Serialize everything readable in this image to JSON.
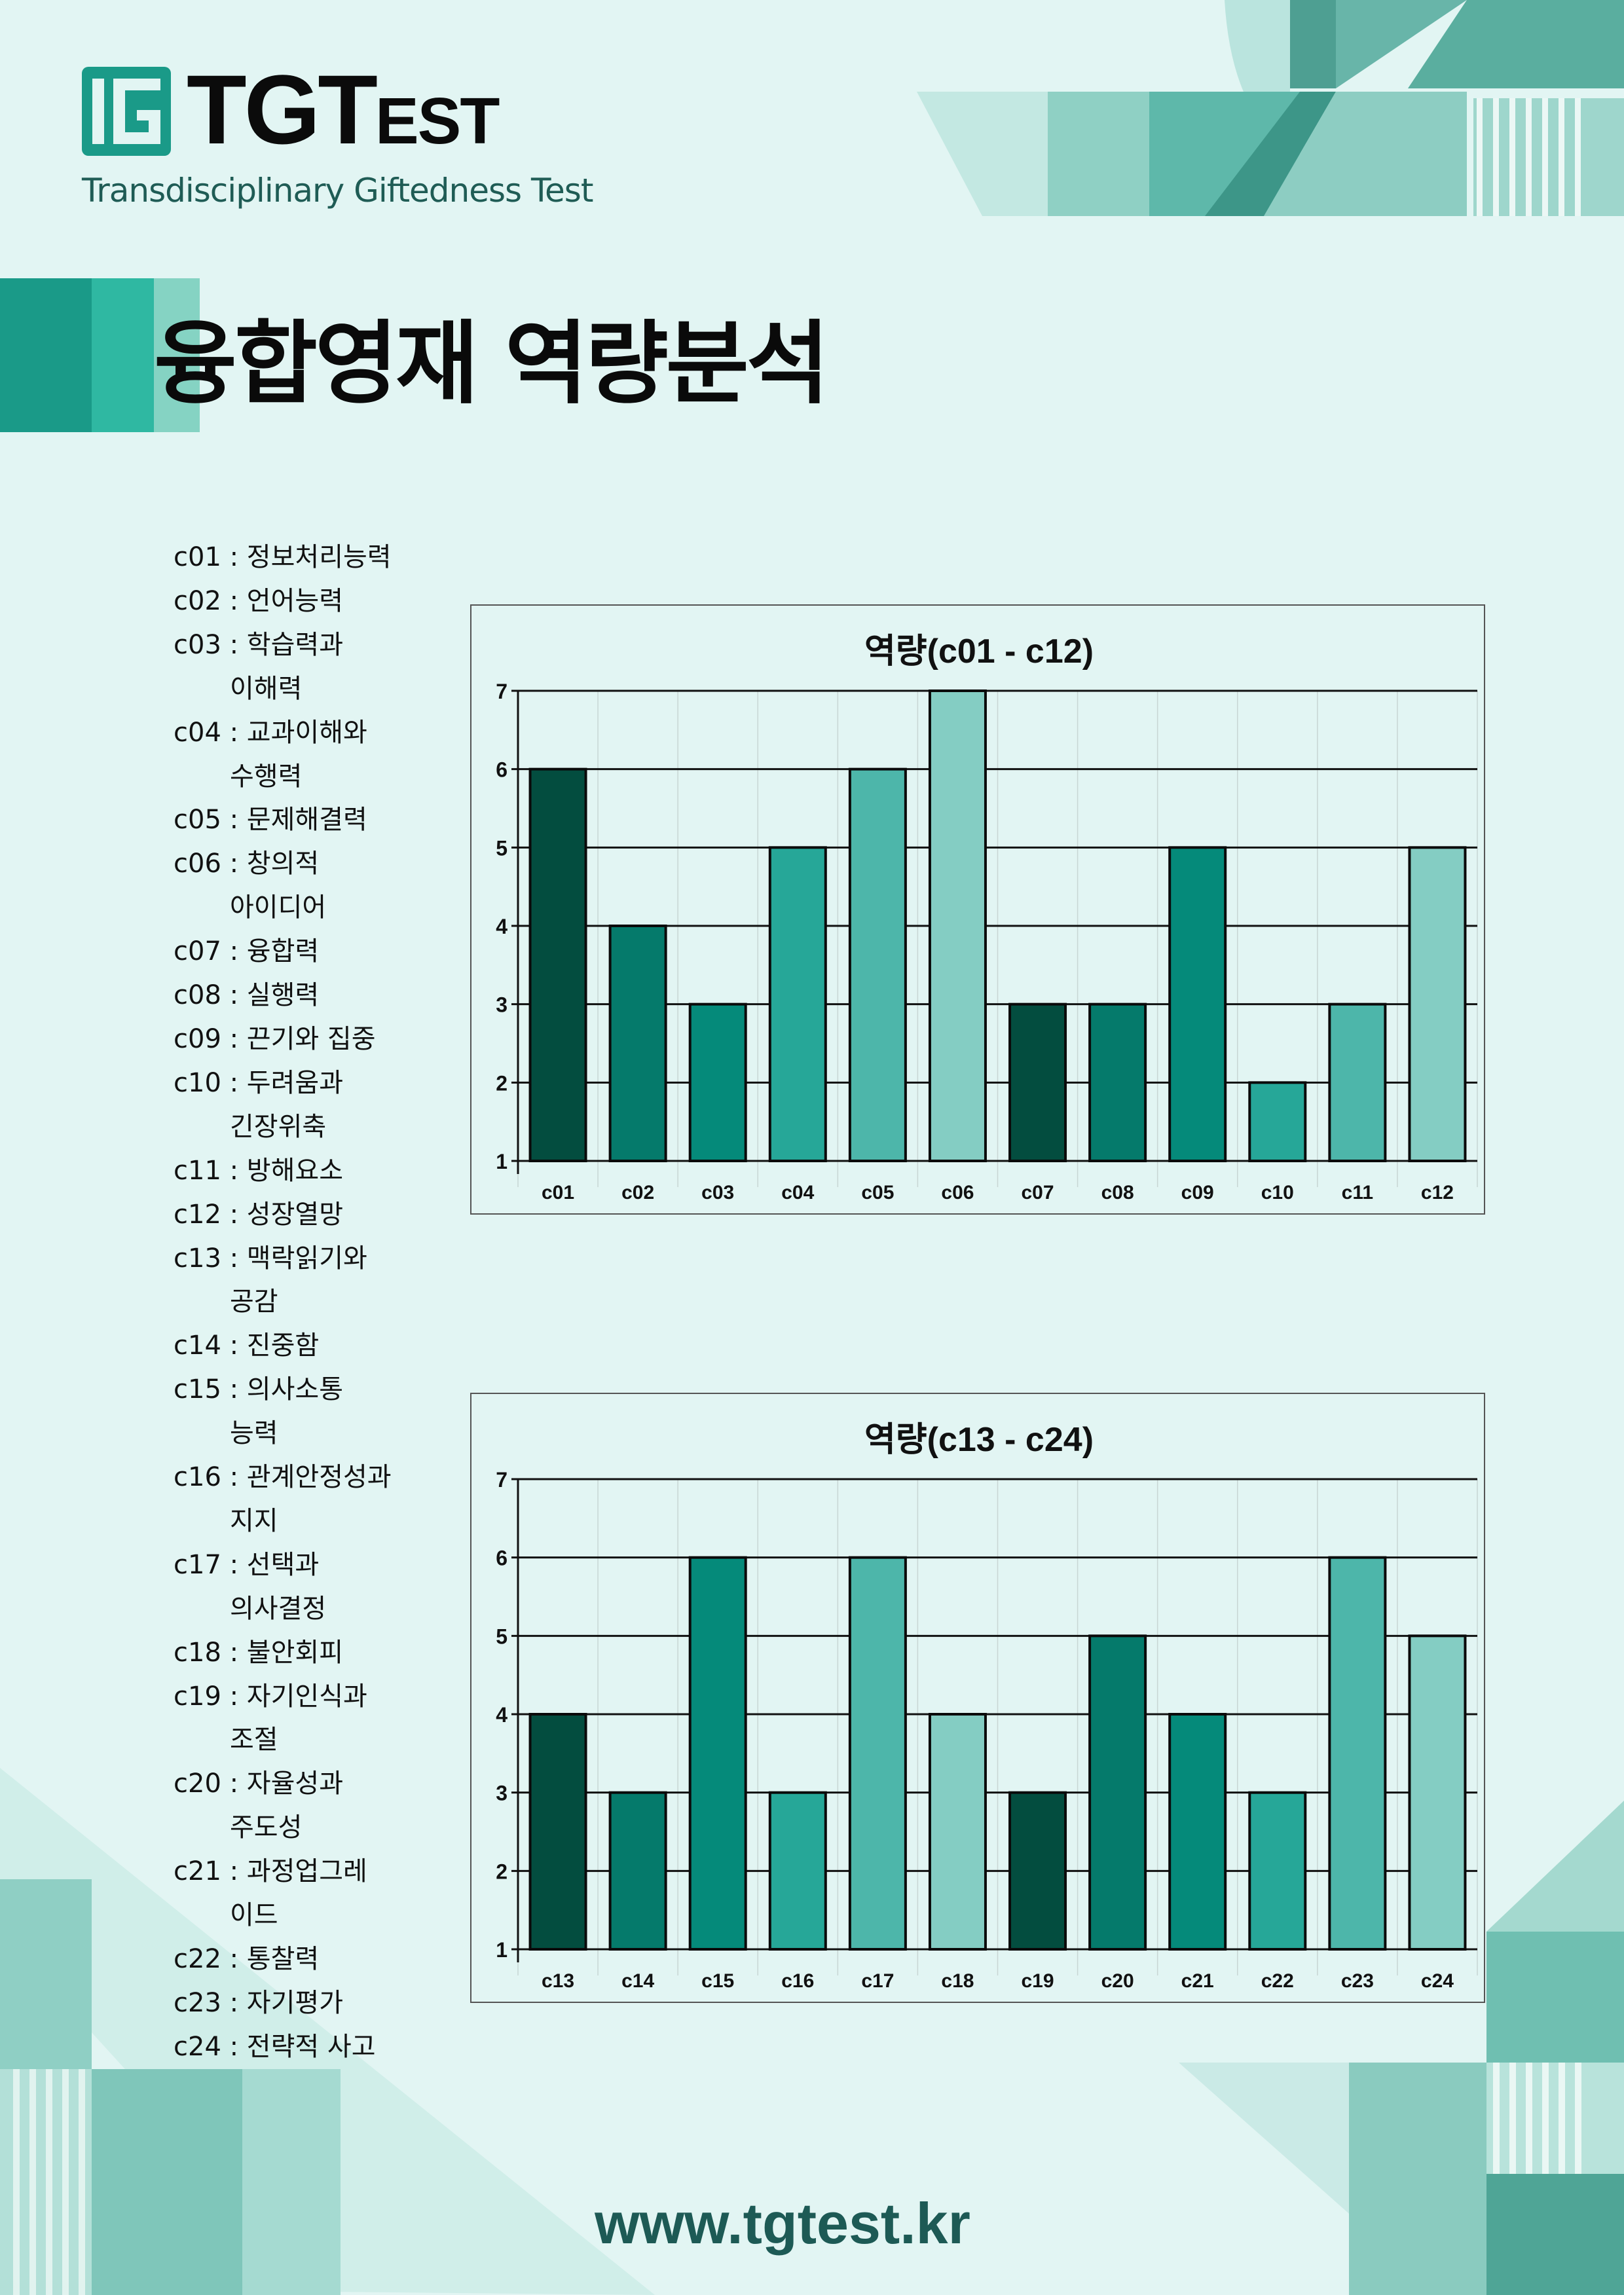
{
  "brand": {
    "logo_main": "TGT",
    "logo_small": "EST",
    "subtitle": "Transdisciplinary Giftedness Test",
    "website": "www.tgtest.kr",
    "colors": {
      "primary": "#1a9a88",
      "mid": "#2fb8a2",
      "light": "#85d3c3",
      "text_dark": "#1d5a55"
    }
  },
  "page_title": "융합영재 역량분석",
  "legend": [
    {
      "code": "c01",
      "label": "정보처리능력"
    },
    {
      "code": "c02",
      "label": "언어능력"
    },
    {
      "code": "c03",
      "label": "학습력과",
      "cont": "이해력"
    },
    {
      "code": "c04",
      "label": "교과이해와",
      "cont": "수행력"
    },
    {
      "code": "c05",
      "label": "문제해결력"
    },
    {
      "code": "c06",
      "label": "창의적",
      "cont": "아이디어"
    },
    {
      "code": "c07",
      "label": "융합력"
    },
    {
      "code": "c08",
      "label": "실행력"
    },
    {
      "code": "c09",
      "label": "끈기와 집중"
    },
    {
      "code": "c10",
      "label": "두려움과",
      "cont": "긴장위축"
    },
    {
      "code": "c11",
      "label": "방해요소"
    },
    {
      "code": "c12",
      "label": "성장열망"
    },
    {
      "code": "c13",
      "label": "맥락읽기와",
      "cont": "공감"
    },
    {
      "code": "c14",
      "label": "진중함"
    },
    {
      "code": "c15",
      "label": "의사소통",
      "cont": "능력"
    },
    {
      "code": "c16",
      "label": "관계안정성과",
      "cont": "지지"
    },
    {
      "code": "c17",
      "label": "선택과",
      "cont": "의사결정"
    },
    {
      "code": "c18",
      "label": "불안회피"
    },
    {
      "code": "c19",
      "label": "자기인식과",
      "cont": "조절"
    },
    {
      "code": "c20",
      "label": "자율성과",
      "cont": "주도성"
    },
    {
      "code": "c21",
      "label": "과정업그레",
      "cont": "이드"
    },
    {
      "code": "c22",
      "label": "통찰력"
    },
    {
      "code": "c23",
      "label": "자기평가"
    },
    {
      "code": "c24",
      "label": "전략적 사고"
    }
  ],
  "chart_data": [
    {
      "type": "bar",
      "title": "역량(c01 - c12)",
      "categories": [
        "c01",
        "c02",
        "c03",
        "c04",
        "c05",
        "c06",
        "c07",
        "c08",
        "c09",
        "c10",
        "c11",
        "c12"
      ],
      "values": [
        6,
        4,
        3,
        5,
        6,
        7,
        3,
        3,
        5,
        2,
        3,
        5
      ],
      "ylim": [
        1,
        7
      ],
      "yticks": [
        1,
        2,
        3,
        4,
        5,
        6,
        7
      ],
      "grid": true,
      "colors": [
        "#034d3f",
        "#057a6b",
        "#058a7a",
        "#26a798",
        "#4db6aa",
        "#84cdc3"
      ]
    },
    {
      "type": "bar",
      "title": "역량(c13 - c24)",
      "categories": [
        "c13",
        "c14",
        "c15",
        "c16",
        "c17",
        "c18",
        "c19",
        "c20",
        "c21",
        "c22",
        "c23",
        "c24"
      ],
      "values": [
        4,
        3,
        6,
        3,
        6,
        4,
        3,
        5,
        4,
        3,
        6,
        5
      ],
      "ylim": [
        1,
        7
      ],
      "yticks": [
        1,
        2,
        3,
        4,
        5,
        6,
        7
      ],
      "grid": true,
      "colors": [
        "#034d3f",
        "#057a6b",
        "#058a7a",
        "#26a798",
        "#4db6aa",
        "#84cdc3"
      ]
    }
  ]
}
